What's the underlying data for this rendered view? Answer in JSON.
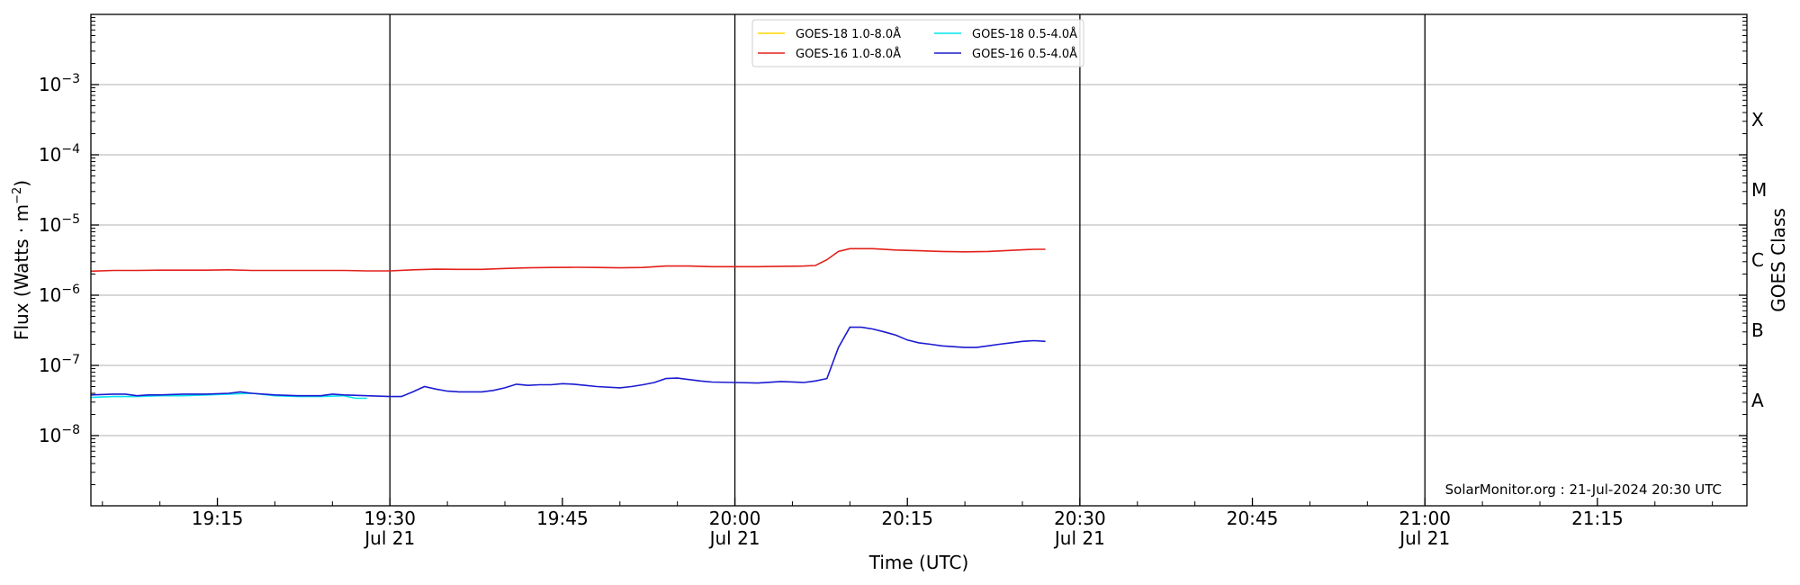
{
  "chart_data": {
    "type": "line",
    "xlabel": "Time (UTC)",
    "ylabel_base": "Flux (Watts · m",
    "ylabel_exp": "−2",
    "ylabel_close": ")",
    "y2label": "GOES Class",
    "yscale": "log",
    "ylim": [
      1e-09,
      0.01
    ],
    "xlim_minutes": [
      "19:04",
      "21:28"
    ],
    "x_ticks": [
      {
        "time": "19:15",
        "label": "19:15",
        "sub": ""
      },
      {
        "time": "19:30",
        "label": "19:30",
        "sub": "Jul 21"
      },
      {
        "time": "19:45",
        "label": "19:45",
        "sub": ""
      },
      {
        "time": "20:00",
        "label": "20:00",
        "sub": "Jul 21"
      },
      {
        "time": "20:15",
        "label": "20:15",
        "sub": ""
      },
      {
        "time": "20:30",
        "label": "20:30",
        "sub": "Jul 21"
      },
      {
        "time": "20:45",
        "label": "20:45",
        "sub": ""
      },
      {
        "time": "21:00",
        "label": "21:00",
        "sub": "Jul 21"
      },
      {
        "time": "21:15",
        "label": "21:15",
        "sub": ""
      }
    ],
    "day_lines": [
      "19:30",
      "20:00",
      "20:30",
      "21:00"
    ],
    "y_ticks": [
      {
        "value": 1e-08,
        "base": "10",
        "exp": "−8"
      },
      {
        "value": 1e-07,
        "base": "10",
        "exp": "−7"
      },
      {
        "value": 1e-06,
        "base": "10",
        "exp": "−6"
      },
      {
        "value": 1e-05,
        "base": "10",
        "exp": "−5"
      },
      {
        "value": 0.0001,
        "base": "10",
        "exp": "−4"
      },
      {
        "value": 0.001,
        "base": "10",
        "exp": "−3"
      }
    ],
    "goes_classes": [
      {
        "label": "A",
        "value": 3.16e-08
      },
      {
        "label": "B",
        "value": 3.16e-07
      },
      {
        "label": "C",
        "value": 3.16e-06
      },
      {
        "label": "M",
        "value": 3.16e-05
      },
      {
        "label": "X",
        "value": 0.000316
      }
    ],
    "credit": "SolarMonitor.org : 21-Jul-2024 20:30 UTC",
    "series": [
      {
        "name": "GOES-18 1.0-8.0Å",
        "color": "#ffd700",
        "points": []
      },
      {
        "name": "GOES-18 0.5-4.0Å",
        "color": "#00e5ee",
        "points": [
          [
            "19:04",
            3.5e-08
          ],
          [
            "19:06",
            3.6e-08
          ],
          [
            "19:08",
            3.6e-08
          ],
          [
            "19:10",
            3.7e-08
          ],
          [
            "19:12",
            3.7e-08
          ],
          [
            "19:14",
            3.8e-08
          ],
          [
            "19:16",
            3.9e-08
          ],
          [
            "19:18",
            4e-08
          ],
          [
            "19:20",
            3.7e-08
          ],
          [
            "19:22",
            3.6e-08
          ],
          [
            "19:24",
            3.6e-08
          ],
          [
            "19:26",
            3.7e-08
          ],
          [
            "19:27",
            3.4e-08
          ],
          [
            "19:28",
            3.4e-08
          ]
        ]
      },
      {
        "name": "GOES-16 1.0-8.0Å",
        "color": "#e3201b",
        "points": [
          [
            "19:04",
            2.2e-06
          ],
          [
            "19:06",
            2.25e-06
          ],
          [
            "19:08",
            2.25e-06
          ],
          [
            "19:10",
            2.27e-06
          ],
          [
            "19:12",
            2.27e-06
          ],
          [
            "19:14",
            2.27e-06
          ],
          [
            "19:16",
            2.3e-06
          ],
          [
            "19:18",
            2.25e-06
          ],
          [
            "19:20",
            2.25e-06
          ],
          [
            "19:22",
            2.25e-06
          ],
          [
            "19:24",
            2.25e-06
          ],
          [
            "19:26",
            2.25e-06
          ],
          [
            "19:28",
            2.22e-06
          ],
          [
            "19:30",
            2.22e-06
          ],
          [
            "19:32",
            2.3e-06
          ],
          [
            "19:34",
            2.35e-06
          ],
          [
            "19:36",
            2.33e-06
          ],
          [
            "19:38",
            2.33e-06
          ],
          [
            "19:40",
            2.4e-06
          ],
          [
            "19:42",
            2.45e-06
          ],
          [
            "19:44",
            2.48e-06
          ],
          [
            "19:46",
            2.5e-06
          ],
          [
            "19:48",
            2.48e-06
          ],
          [
            "19:50",
            2.45e-06
          ],
          [
            "19:52",
            2.48e-06
          ],
          [
            "19:54",
            2.6e-06
          ],
          [
            "19:56",
            2.6e-06
          ],
          [
            "19:58",
            2.55e-06
          ],
          [
            "20:00",
            2.55e-06
          ],
          [
            "20:02",
            2.55e-06
          ],
          [
            "20:04",
            2.58e-06
          ],
          [
            "20:06",
            2.6e-06
          ],
          [
            "20:07",
            2.65e-06
          ],
          [
            "20:08",
            3.2e-06
          ],
          [
            "20:09",
            4.2e-06
          ],
          [
            "20:10",
            4.6e-06
          ],
          [
            "20:12",
            4.6e-06
          ],
          [
            "20:14",
            4.4e-06
          ],
          [
            "20:16",
            4.3e-06
          ],
          [
            "20:18",
            4.2e-06
          ],
          [
            "20:20",
            4.15e-06
          ],
          [
            "20:22",
            4.2e-06
          ],
          [
            "20:24",
            4.35e-06
          ],
          [
            "20:26",
            4.5e-06
          ],
          [
            "20:27",
            4.5e-06
          ]
        ]
      },
      {
        "name": "GOES-16 0.5-4.0Å",
        "color": "#1b1bd1",
        "points": [
          [
            "19:04",
            3.8e-08
          ],
          [
            "19:06",
            3.9e-08
          ],
          [
            "19:07",
            3.9e-08
          ],
          [
            "19:08",
            3.7e-08
          ],
          [
            "19:09",
            3.8e-08
          ],
          [
            "19:10",
            3.8e-08
          ],
          [
            "19:12",
            3.9e-08
          ],
          [
            "19:14",
            3.9e-08
          ],
          [
            "19:16",
            4e-08
          ],
          [
            "19:17",
            4.2e-08
          ],
          [
            "19:18",
            4e-08
          ],
          [
            "19:20",
            3.8e-08
          ],
          [
            "19:22",
            3.7e-08
          ],
          [
            "19:24",
            3.7e-08
          ],
          [
            "19:25",
            3.9e-08
          ],
          [
            "19:26",
            3.8e-08
          ],
          [
            "19:28",
            3.7e-08
          ],
          [
            "19:30",
            3.6e-08
          ],
          [
            "19:31",
            3.6e-08
          ],
          [
            "19:32",
            4.2e-08
          ],
          [
            "19:33",
            5e-08
          ],
          [
            "19:34",
            4.6e-08
          ],
          [
            "19:35",
            4.3e-08
          ],
          [
            "19:36",
            4.2e-08
          ],
          [
            "19:38",
            4.2e-08
          ],
          [
            "19:39",
            4.4e-08
          ],
          [
            "19:40",
            4.8e-08
          ],
          [
            "19:41",
            5.4e-08
          ],
          [
            "19:42",
            5.2e-08
          ],
          [
            "19:43",
            5.3e-08
          ],
          [
            "19:44",
            5.3e-08
          ],
          [
            "19:45",
            5.5e-08
          ],
          [
            "19:46",
            5.4e-08
          ],
          [
            "19:47",
            5.2e-08
          ],
          [
            "19:48",
            5e-08
          ],
          [
            "19:50",
            4.8e-08
          ],
          [
            "19:51",
            5e-08
          ],
          [
            "19:52",
            5.3e-08
          ],
          [
            "19:53",
            5.7e-08
          ],
          [
            "19:54",
            6.5e-08
          ],
          [
            "19:55",
            6.6e-08
          ],
          [
            "19:56",
            6.3e-08
          ],
          [
            "19:57",
            6e-08
          ],
          [
            "19:58",
            5.8e-08
          ],
          [
            "20:00",
            5.7e-08
          ],
          [
            "20:02",
            5.6e-08
          ],
          [
            "20:04",
            5.9e-08
          ],
          [
            "20:06",
            5.7e-08
          ],
          [
            "20:07",
            6e-08
          ],
          [
            "20:08",
            6.5e-08
          ],
          [
            "20:09",
            1.8e-07
          ],
          [
            "20:10",
            3.5e-07
          ],
          [
            "20:11",
            3.5e-07
          ],
          [
            "20:12",
            3.3e-07
          ],
          [
            "20:13",
            3e-07
          ],
          [
            "20:14",
            2.7e-07
          ],
          [
            "20:15",
            2.3e-07
          ],
          [
            "20:16",
            2.1e-07
          ],
          [
            "20:17",
            2e-07
          ],
          [
            "20:18",
            1.9e-07
          ],
          [
            "20:19",
            1.85e-07
          ],
          [
            "20:20",
            1.8e-07
          ],
          [
            "20:21",
            1.8e-07
          ],
          [
            "20:22",
            1.9e-07
          ],
          [
            "20:23",
            2e-07
          ],
          [
            "20:24",
            2.1e-07
          ],
          [
            "20:25",
            2.2e-07
          ],
          [
            "20:26",
            2.25e-07
          ],
          [
            "20:27",
            2.2e-07
          ]
        ]
      }
    ],
    "legend_order": [
      0,
      1,
      2,
      3
    ]
  }
}
